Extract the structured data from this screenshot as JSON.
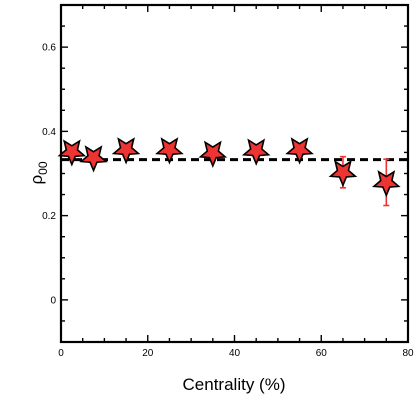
{
  "chart_data": {
    "type": "scatter",
    "title": "",
    "xlabel": "Centrality (%)",
    "ylabel_main": "ρ",
    "ylabel_sub": "00",
    "xlim": [
      0,
      80
    ],
    "ylim": [
      -0.1,
      0.7
    ],
    "xticks": [
      0,
      20,
      40,
      60,
      80
    ],
    "yticks": [
      0,
      0.2,
      0.4,
      0.6
    ],
    "xtick_labels": [
      "0",
      "20",
      "40",
      "60",
      "80"
    ],
    "ytick_labels": [
      "0",
      "0.2",
      "0.4",
      "0.6"
    ],
    "grid": false,
    "reference_line": {
      "y": 0.333,
      "style": "dashed",
      "color": "#000000"
    },
    "series": [
      {
        "marker": "star",
        "marker_color": "#ee3333",
        "x": [
          2.5,
          7.5,
          15,
          25,
          35,
          45,
          55,
          65,
          75
        ],
        "y": [
          0.352,
          0.338,
          0.357,
          0.357,
          0.349,
          0.354,
          0.357,
          0.303,
          0.279
        ],
        "yerr": [
          0.012,
          0.01,
          0.01,
          0.01,
          0.01,
          0.01,
          0.012,
          0.037,
          0.055
        ]
      }
    ]
  }
}
